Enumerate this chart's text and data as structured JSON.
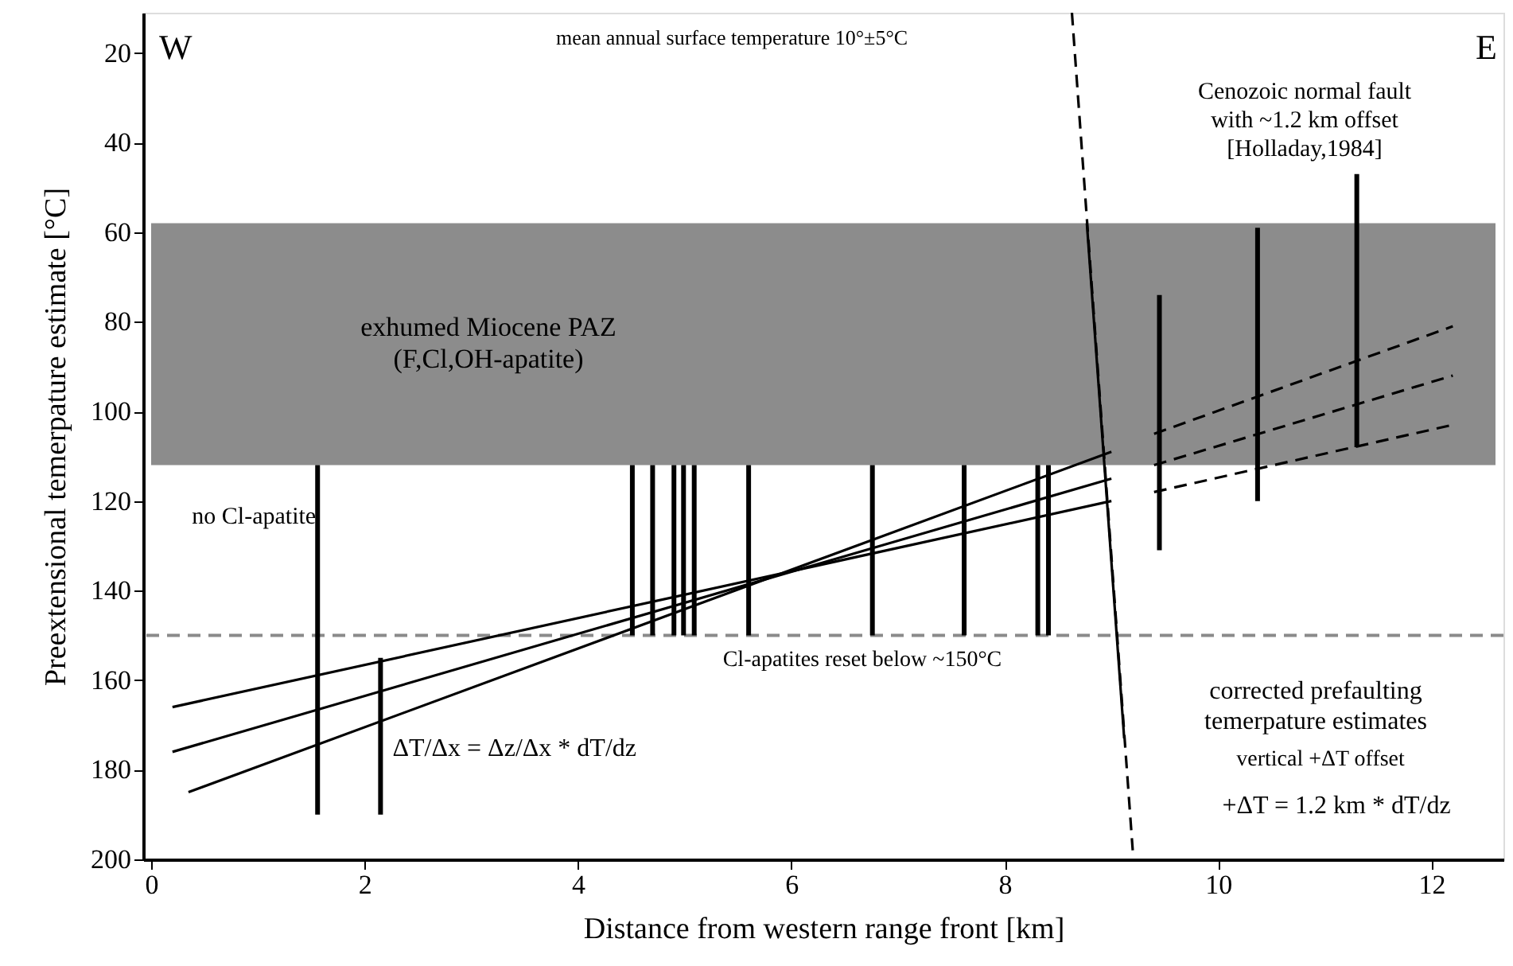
{
  "chart_data": {
    "type": "line",
    "xlabel": "Distance from western range front [km]",
    "ylabel": "Preextensional temerpature estimate [°C]",
    "xlim": [
      0,
      12.6
    ],
    "ylim": [
      200,
      11
    ],
    "xticks": [
      0,
      2,
      4,
      6,
      8,
      10,
      12
    ],
    "yticks": [
      20,
      40,
      60,
      80,
      100,
      120,
      140,
      160,
      180,
      200
    ],
    "grid": false,
    "bands": [
      {
        "axis": "y",
        "from": 58,
        "to": 112,
        "color": "#8c8c8c"
      }
    ],
    "ref_lines": [
      {
        "axis": "y",
        "value": 150,
        "label": "Cl-apatites reset below ~150°C",
        "color": "#8a8a8a",
        "line_style": "dashed"
      }
    ],
    "series": [
      {
        "type": "bar",
        "color": "#000000",
        "x": [
          1.56,
          2.15,
          4.51,
          4.7,
          4.9,
          4.99,
          5.09,
          5.6,
          6.76,
          7.62,
          8.31,
          8.41,
          9.45,
          10.37,
          11.3
        ],
        "base": [
          112,
          155,
          112,
          112,
          112,
          112,
          112,
          112,
          112,
          112,
          112,
          112,
          74,
          59,
          47
        ],
        "values": [
          78,
          35,
          38,
          38,
          38,
          38,
          38,
          38,
          38,
          38,
          38,
          38,
          57,
          61,
          61
        ]
      },
      {
        "color": "#000000",
        "line_style": "solid",
        "x": [
          0.2,
          9.0
        ],
        "values": [
          166,
          120
        ]
      },
      {
        "color": "#000000",
        "line_style": "solid",
        "x": [
          0.2,
          9.0
        ],
        "values": [
          176,
          115
        ]
      },
      {
        "color": "#000000",
        "line_style": "solid",
        "x": [
          0.35,
          9.0
        ],
        "values": [
          185,
          109
        ]
      },
      {
        "color": "#000000",
        "line_style": "dashed",
        "x": [
          9.4,
          12.2
        ],
        "values": [
          118,
          103
        ]
      },
      {
        "color": "#000000",
        "line_style": "dashed",
        "x": [
          9.4,
          12.2
        ],
        "values": [
          112,
          92
        ]
      },
      {
        "color": "#000000",
        "line_style": "dashed",
        "x": [
          9.4,
          12.2
        ],
        "values": [
          105,
          81
        ]
      },
      {
        "color": "#000000",
        "line_style": "dashed",
        "x": [
          8.63,
          9.2
        ],
        "values": [
          11,
          198
        ]
      },
      {
        "color": "#000000",
        "line_style": "solid",
        "x": [
          8.77,
          9.12
        ],
        "values": [
          58,
          173
        ]
      }
    ],
    "annotations": [
      "W",
      "E",
      "mean annual surface temperature 10°±5°C",
      "Cenozoic normal fault\nwith ~1.2 km offset\n[Holladay,1984]",
      "exhumed Miocene PAZ\n(F,Cl,OH-apatite)",
      {
        "text": "no Cl-apatite",
        "x": 1.56,
        "y": 135
      },
      {
        "text": "ΔT/Δx = Δz/Δx * dT/dz",
        "x": 2.6,
        "y": 161
      },
      "corrected prefaulting\ntemerpature estimates",
      "vertical +ΔT offset",
      "+ΔT = 1.2 km * dT/dz"
    ]
  }
}
